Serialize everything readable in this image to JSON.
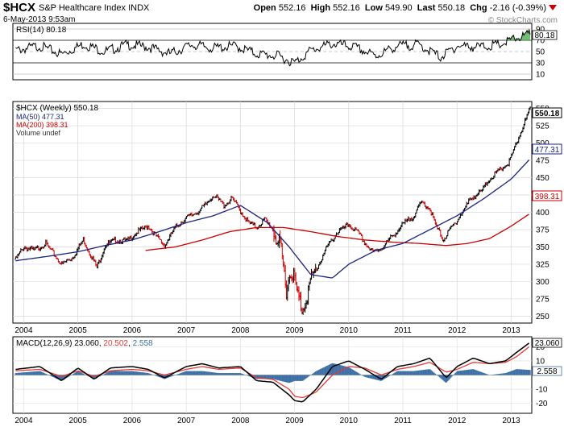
{
  "header": {
    "symbol": "$HCX",
    "name": "S&P Healthcare Index",
    "exchange": "INDX",
    "date": "6-May-2013 9:53am",
    "open_label": "Open",
    "open": "552.16",
    "high_label": "High",
    "high": "552.16",
    "low_label": "Low",
    "low": "549.90",
    "last_label": "Last",
    "last": "550.18",
    "chg_label": "Chg",
    "chg": "-2.16 (-0.39%)",
    "watermark": "© StockCharts.com"
  },
  "rsi_panel": {
    "legend": "RSI(14) 80.18",
    "current": "80.18",
    "ticks": [
      "90",
      "70",
      "50",
      "30",
      "10"
    ]
  },
  "price_panel": {
    "legend_main": "$HCX (Weekly) 550.18",
    "legend_ma50": "MA(50) 477.31",
    "legend_ma200": "MA(200) 398.31",
    "legend_vol": "Volume undef",
    "last_tag": "550.18",
    "ma50_tag": "477.31",
    "ma200_tag": "398.31"
  },
  "macd_panel": {
    "legend_prefix": "MACD(12,26,9)",
    "macd": "23.060",
    "signal": "20.502",
    "hist": "2.558",
    "ticks": [
      "20",
      "10",
      "-10",
      "-20"
    ]
  },
  "colors": {
    "price": "#000000",
    "ma50": "#1a237e",
    "ma200": "#cc0000",
    "macd": "#000000",
    "signal": "#e53935",
    "hist": "#3b6ea5",
    "rsi_fill": "#4caf50",
    "chg_down": "#cc0000"
  },
  "chart_data": {
    "type": "line",
    "title": "$HCX S&P Healthcare Index INDX",
    "timeframe": "Weekly",
    "x_years": [
      "2004",
      "2005",
      "2006",
      "2007",
      "2008",
      "2009",
      "2010",
      "2011",
      "2012",
      "2013"
    ],
    "y_ticks": [
      250,
      275,
      300,
      325,
      350,
      375,
      400,
      425,
      450,
      475,
      500,
      525,
      550
    ],
    "ylim": [
      240,
      560
    ],
    "series": [
      {
        "name": "$HCX (Weekly)",
        "x": [
          2003.85,
          2004.0,
          2004.2,
          2004.4,
          2004.55,
          2004.7,
          2004.9,
          2005.1,
          2005.2,
          2005.35,
          2005.5,
          2005.7,
          2005.9,
          2006.1,
          2006.3,
          2006.45,
          2006.6,
          2006.8,
          2007.0,
          2007.2,
          2007.35,
          2007.5,
          2007.7,
          2007.85,
          2008.0,
          2008.15,
          2008.3,
          2008.45,
          2008.6,
          2008.75,
          2008.85,
          2008.95,
          2009.05,
          2009.15,
          2009.3,
          2009.45,
          2009.6,
          2009.8,
          2010.0,
          2010.2,
          2010.3,
          2010.45,
          2010.6,
          2010.8,
          2011.0,
          2011.2,
          2011.35,
          2011.5,
          2011.6,
          2011.75,
          2011.9,
          2012.1,
          2012.25,
          2012.45,
          2012.6,
          2012.8,
          2012.95,
          2013.1,
          2013.25,
          2013.35
        ],
        "values": [
          332,
          350,
          345,
          355,
          340,
          325,
          335,
          360,
          345,
          320,
          352,
          360,
          358,
          372,
          380,
          365,
          352,
          378,
          392,
          400,
          410,
          425,
          410,
          420,
          402,
          385,
          378,
          390,
          375,
          345,
          290,
          320,
          282,
          260,
          300,
          325,
          350,
          372,
          382,
          368,
          355,
          342,
          348,
          365,
          382,
          395,
          415,
          405,
          382,
          360,
          378,
          400,
          420,
          430,
          448,
          462,
          470,
          500,
          530,
          550
        ]
      },
      {
        "name": "MA(50)",
        "x": [
          2003.85,
          2004.5,
          2005.0,
          2005.5,
          2006.0,
          2006.5,
          2007.0,
          2007.5,
          2008.0,
          2008.5,
          2008.9,
          2009.3,
          2009.7,
          2010.0,
          2010.5,
          2011.0,
          2011.5,
          2012.0,
          2012.5,
          2013.0,
          2013.35
        ],
        "values": [
          330,
          337,
          343,
          352,
          360,
          372,
          385,
          395,
          410,
          385,
          350,
          310,
          305,
          325,
          345,
          355,
          375,
          395,
          420,
          448,
          477.31
        ]
      },
      {
        "name": "MA(200)",
        "x": [
          2006.25,
          2006.8,
          2007.3,
          2007.8,
          2008.3,
          2008.8,
          2009.3,
          2009.8,
          2010.3,
          2010.8,
          2011.3,
          2011.8,
          2012.2,
          2012.6,
          2013.0,
          2013.35
        ],
        "values": [
          345,
          350,
          360,
          372,
          378,
          378,
          372,
          365,
          360,
          357,
          355,
          352,
          355,
          362,
          380,
          398.31
        ]
      }
    ],
    "macd": {
      "x": [
        2003.85,
        2004.3,
        2004.7,
        2005.0,
        2005.3,
        2005.6,
        2006.0,
        2006.3,
        2006.6,
        2007.0,
        2007.3,
        2007.6,
        2008.0,
        2008.3,
        2008.6,
        2008.9,
        2009.0,
        2009.15,
        2009.4,
        2009.7,
        2010.0,
        2010.3,
        2010.6,
        2010.9,
        2011.2,
        2011.5,
        2011.8,
        2012.0,
        2012.3,
        2012.6,
        2012.9,
        2013.1,
        2013.35
      ],
      "macd": [
        4,
        6,
        -4,
        5,
        -3,
        5,
        6,
        4,
        -2,
        6,
        8,
        5,
        6,
        -4,
        -5,
        -14,
        -18,
        -19,
        -10,
        6,
        10,
        4,
        -3,
        6,
        8,
        12,
        -2,
        6,
        12,
        8,
        10,
        16,
        23.06
      ],
      "signal": [
        3,
        4,
        -1,
        3,
        -1,
        3,
        4,
        3,
        0,
        4,
        6,
        4,
        5,
        -2,
        -3,
        -10,
        -15,
        -16,
        -12,
        0,
        6,
        5,
        0,
        4,
        6,
        9,
        2,
        4,
        9,
        8,
        9,
        13,
        20.502
      ]
    },
    "rsi": {
      "ylim": [
        0,
        100
      ],
      "x": [
        2003.85,
        2004.3,
        2004.7,
        2005.1,
        2005.5,
        2005.9,
        2006.3,
        2006.7,
        2007.1,
        2007.5,
        2007.9,
        2008.3,
        2008.7,
        2009.0,
        2009.3,
        2009.7,
        2010.1,
        2010.5,
        2010.9,
        2011.3,
        2011.7,
        2012.0,
        2012.4,
        2012.8,
        2013.1,
        2013.35
      ],
      "values": [
        52,
        60,
        45,
        63,
        50,
        62,
        58,
        46,
        62,
        56,
        60,
        46,
        42,
        30,
        52,
        64,
        58,
        42,
        60,
        62,
        40,
        60,
        58,
        62,
        74,
        80.18
      ]
    }
  }
}
